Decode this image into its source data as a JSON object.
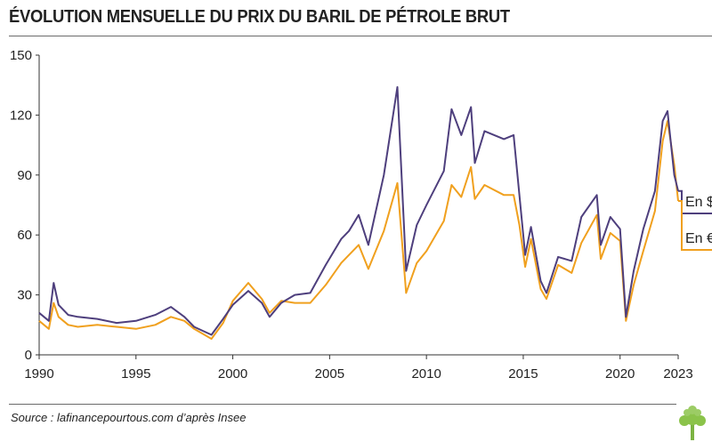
{
  "title": "ÉVOLUTION MENSUELLE DU PRIX DU BARIL DE PÉTROLE BRUT",
  "source": "Source : lafinancepourtous.com d’après Insee",
  "logo": "tree-logo",
  "colors": {
    "usd": "#4e3f7d",
    "eur": "#f0a01e",
    "axis": "#333333"
  },
  "chart_data": {
    "type": "line",
    "title": "ÉVOLUTION MENSUELLE DU PRIX DU BARIL DE PÉTROLE BRUT",
    "xlabel": "",
    "ylabel": "",
    "ylim": [
      0,
      150
    ],
    "xlim": [
      1990,
      2023
    ],
    "grid": false,
    "legend": "right",
    "x_ticks": [
      "1990",
      "1995",
      "2000",
      "2005",
      "2010",
      "2015",
      "2020",
      "2023"
    ],
    "y_ticks": [
      "0",
      "30",
      "60",
      "90",
      "120",
      "150"
    ],
    "series": [
      {
        "name": "En $",
        "color": "#4e3f7d",
        "points": [
          [
            1990.0,
            21
          ],
          [
            1990.5,
            17
          ],
          [
            1990.75,
            36
          ],
          [
            1991.0,
            25
          ],
          [
            1991.5,
            20
          ],
          [
            1992.0,
            19
          ],
          [
            1993.0,
            18
          ],
          [
            1994.0,
            16
          ],
          [
            1995.0,
            17
          ],
          [
            1996.0,
            20
          ],
          [
            1996.8,
            24
          ],
          [
            1997.5,
            19
          ],
          [
            1998.0,
            14
          ],
          [
            1998.9,
            10
          ],
          [
            1999.5,
            18
          ],
          [
            2000.0,
            25
          ],
          [
            2000.8,
            32
          ],
          [
            2001.5,
            26
          ],
          [
            2001.9,
            19
          ],
          [
            2002.5,
            26
          ],
          [
            2003.2,
            30
          ],
          [
            2004.0,
            31
          ],
          [
            2004.8,
            45
          ],
          [
            2005.6,
            58
          ],
          [
            2006.0,
            62
          ],
          [
            2006.5,
            70
          ],
          [
            2007.0,
            55
          ],
          [
            2007.8,
            90
          ],
          [
            2008.5,
            134
          ],
          [
            2008.95,
            42
          ],
          [
            2009.5,
            65
          ],
          [
            2010.0,
            75
          ],
          [
            2010.9,
            92
          ],
          [
            2011.3,
            123
          ],
          [
            2011.8,
            110
          ],
          [
            2012.3,
            124
          ],
          [
            2012.5,
            96
          ],
          [
            2013.0,
            112
          ],
          [
            2014.0,
            108
          ],
          [
            2014.5,
            110
          ],
          [
            2014.8,
            80
          ],
          [
            2015.1,
            50
          ],
          [
            2015.4,
            64
          ],
          [
            2015.9,
            37
          ],
          [
            2016.2,
            31
          ],
          [
            2016.8,
            49
          ],
          [
            2017.5,
            47
          ],
          [
            2018.0,
            69
          ],
          [
            2018.8,
            80
          ],
          [
            2019.0,
            55
          ],
          [
            2019.5,
            69
          ],
          [
            2020.0,
            63
          ],
          [
            2020.3,
            19
          ],
          [
            2020.7,
            42
          ],
          [
            2021.2,
            63
          ],
          [
            2021.8,
            82
          ],
          [
            2022.2,
            117
          ],
          [
            2022.45,
            122
          ],
          [
            2022.8,
            90
          ],
          [
            2023.0,
            82
          ]
        ]
      },
      {
        "name": "En €",
        "color": "#f0a01e",
        "points": [
          [
            1990.0,
            17
          ],
          [
            1990.5,
            13
          ],
          [
            1990.75,
            26
          ],
          [
            1991.0,
            19
          ],
          [
            1991.5,
            15
          ],
          [
            1992.0,
            14
          ],
          [
            1993.0,
            15
          ],
          [
            1994.0,
            14
          ],
          [
            1995.0,
            13
          ],
          [
            1996.0,
            15
          ],
          [
            1996.8,
            19
          ],
          [
            1997.5,
            17
          ],
          [
            1998.0,
            13
          ],
          [
            1998.9,
            8
          ],
          [
            1999.5,
            16
          ],
          [
            2000.0,
            27
          ],
          [
            2000.8,
            36
          ],
          [
            2001.5,
            28
          ],
          [
            2001.9,
            21
          ],
          [
            2002.5,
            27
          ],
          [
            2003.2,
            26
          ],
          [
            2004.0,
            26
          ],
          [
            2004.8,
            35
          ],
          [
            2005.6,
            46
          ],
          [
            2006.0,
            50
          ],
          [
            2006.5,
            55
          ],
          [
            2007.0,
            43
          ],
          [
            2007.8,
            62
          ],
          [
            2008.5,
            86
          ],
          [
            2008.95,
            31
          ],
          [
            2009.5,
            46
          ],
          [
            2010.0,
            52
          ],
          [
            2010.9,
            67
          ],
          [
            2011.3,
            85
          ],
          [
            2011.8,
            79
          ],
          [
            2012.3,
            94
          ],
          [
            2012.5,
            78
          ],
          [
            2013.0,
            85
          ],
          [
            2014.0,
            80
          ],
          [
            2014.5,
            80
          ],
          [
            2014.8,
            65
          ],
          [
            2015.1,
            44
          ],
          [
            2015.4,
            58
          ],
          [
            2015.9,
            33
          ],
          [
            2016.2,
            28
          ],
          [
            2016.8,
            45
          ],
          [
            2017.5,
            41
          ],
          [
            2018.0,
            56
          ],
          [
            2018.8,
            70
          ],
          [
            2019.0,
            48
          ],
          [
            2019.5,
            61
          ],
          [
            2020.0,
            57
          ],
          [
            2020.3,
            17
          ],
          [
            2020.7,
            35
          ],
          [
            2021.2,
            52
          ],
          [
            2021.8,
            72
          ],
          [
            2022.2,
            107
          ],
          [
            2022.45,
            117
          ],
          [
            2022.8,
            95
          ],
          [
            2023.0,
            77
          ]
        ]
      }
    ]
  }
}
